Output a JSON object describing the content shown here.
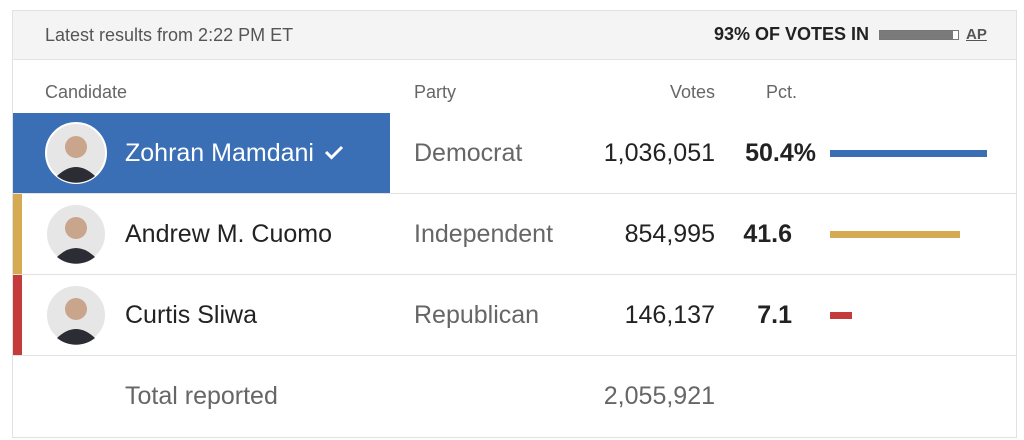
{
  "header": {
    "updated": "Latest results from 2:22 PM ET",
    "reporting": {
      "value": 93,
      "label": "93% OF VOTES IN"
    },
    "source": "AP"
  },
  "table": {
    "columns": [
      "Candidate",
      "Party",
      "Votes",
      "Pct."
    ],
    "rows": [
      {
        "name": "Zohran Mamdani",
        "party": "Democrat",
        "votes": "1,036,051",
        "pct": 50.4,
        "pct_label": "50.4%",
        "color": "#3a6fb5",
        "winner": true
      },
      {
        "name": "Andrew M. Cuomo",
        "party": "Independent",
        "votes": "854,995",
        "pct": 41.6,
        "pct_label": "41.6",
        "color": "#d5aa52",
        "winner": false
      },
      {
        "name": "Curtis Sliwa",
        "party": "Republican",
        "votes": "146,137",
        "pct": 7.1,
        "pct_label": "7.1",
        "color": "#c53b3b",
        "winner": false
      }
    ],
    "total": {
      "label": "Total reported",
      "votes": "2,055,921"
    }
  }
}
